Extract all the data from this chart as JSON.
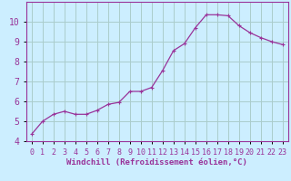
{
  "x": [
    0,
    1,
    2,
    3,
    4,
    5,
    6,
    7,
    8,
    9,
    10,
    11,
    12,
    13,
    14,
    15,
    16,
    17,
    18,
    19,
    20,
    21,
    22,
    23
  ],
  "y": [
    4.35,
    5.0,
    5.35,
    5.5,
    5.35,
    5.35,
    5.55,
    5.85,
    5.95,
    6.5,
    6.5,
    6.7,
    7.55,
    8.55,
    8.9,
    9.7,
    10.35,
    10.35,
    10.3,
    9.8,
    9.45,
    9.2,
    9.0,
    8.85
  ],
  "line_color": "#993399",
  "marker": "+",
  "marker_size": 3.5,
  "marker_linewidth": 0.8,
  "background_color": "#cceeff",
  "grid_color": "#aacccc",
  "xlabel": "Windchill (Refroidissement éolien,°C)",
  "xlim_min": -0.5,
  "xlim_max": 23.5,
  "ylim_min": 4,
  "ylim_max": 11,
  "yticks": [
    4,
    5,
    6,
    7,
    8,
    9,
    10
  ],
  "xticks": [
    0,
    1,
    2,
    3,
    4,
    5,
    6,
    7,
    8,
    9,
    10,
    11,
    12,
    13,
    14,
    15,
    16,
    17,
    18,
    19,
    20,
    21,
    22,
    23
  ],
  "tick_label_color": "#993399",
  "axis_color": "#993399",
  "xlabel_fontsize": 6.5,
  "tick_fontsize": 6.0,
  "ytick_fontsize": 7.0,
  "line_width": 0.9,
  "figsize": [
    3.2,
    2.0
  ],
  "dpi": 100
}
